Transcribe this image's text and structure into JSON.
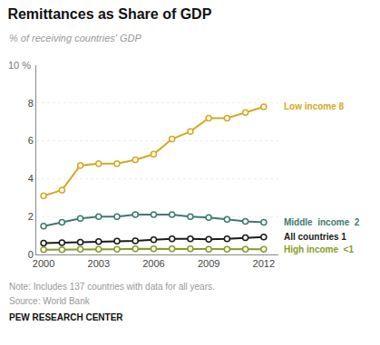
{
  "chart_data": {
    "type": "line",
    "title": "Remittances as Share of GDP",
    "subtitle": "% of receiving countries' GDP",
    "note": "Note: Includes 137 countries with data for all years.",
    "source": "Source: World Bank",
    "attribution": "PEW RESEARCH CENTER",
    "annotations": [
      "10 %"
    ],
    "x": [
      2000,
      2001,
      2002,
      2003,
      2004,
      2005,
      2006,
      2007,
      2008,
      2009,
      2010,
      2011,
      2012
    ],
    "series": [
      {
        "name": "Low income 8",
        "color": "#D4A820",
        "values": [
          3.1,
          3.4,
          4.7,
          4.8,
          4.8,
          5.0,
          5.3,
          6.1,
          6.5,
          7.2,
          7.2,
          7.5,
          7.8
        ]
      },
      {
        "name": "Middle  income  2",
        "color": "#3D7A6E",
        "values": [
          1.5,
          1.7,
          1.9,
          2.0,
          2.0,
          2.1,
          2.1,
          2.1,
          2.0,
          1.95,
          1.85,
          1.75,
          1.7
        ]
      },
      {
        "name": "All countries 1",
        "color": "#1A1A1A",
        "values": [
          0.6,
          0.62,
          0.64,
          0.68,
          0.7,
          0.72,
          0.78,
          0.82,
          0.82,
          0.8,
          0.82,
          0.88,
          0.92
        ]
      },
      {
        "name": "High income  <1",
        "color": "#8A9A2A",
        "values": [
          0.25,
          0.25,
          0.27,
          0.28,
          0.28,
          0.3,
          0.3,
          0.3,
          0.3,
          0.28,
          0.28,
          0.27,
          0.27
        ]
      }
    ],
    "xlim": [
      1999.6,
      2012.8
    ],
    "xticks": [
      2000,
      2003,
      2006,
      2009,
      2012
    ],
    "ylim": [
      0,
      10
    ],
    "yticks": [
      0,
      2,
      4,
      6,
      8
    ],
    "grid": "y",
    "marker": "circle"
  }
}
